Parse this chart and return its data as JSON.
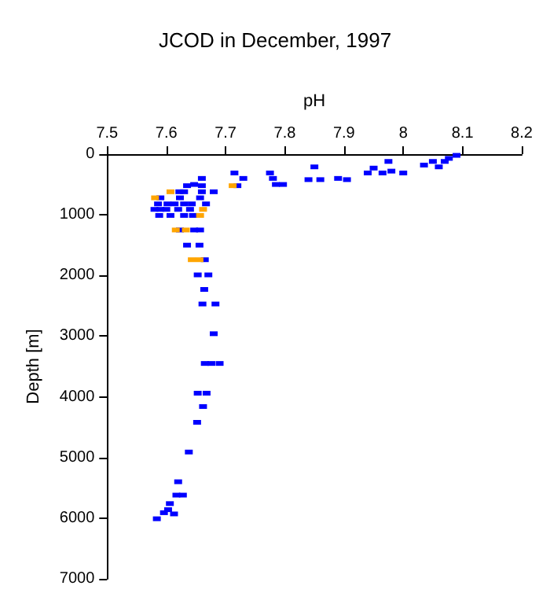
{
  "chart_data": {
    "type": "scatter",
    "title": "JCOD in December, 1997",
    "xlabel": "pH",
    "ylabel": "Depth [m]",
    "xlim": [
      7.5,
      8.2
    ],
    "xticks": [
      7.5,
      7.6,
      7.7,
      7.8,
      7.9,
      8,
      8.1,
      8.2
    ],
    "ylim": [
      7000,
      0
    ],
    "yticks": [
      0,
      1000,
      2000,
      3000,
      4000,
      5000,
      6000,
      7000
    ],
    "grid": false,
    "marker": "square",
    "series": [
      {
        "color": "#0000ff",
        "x": [
          8.09,
          8.077,
          8.05,
          8.07,
          7.975,
          8.035,
          8.06,
          7.85,
          7.95,
          7.98,
          7.94,
          7.965,
          8.0,
          7.715,
          7.775,
          7.73,
          7.78,
          7.84,
          7.86,
          7.89,
          7.905,
          7.66,
          7.785,
          7.797,
          7.72,
          7.635,
          7.647,
          7.66,
          7.622,
          7.63,
          7.66,
          7.68,
          7.59,
          7.623,
          7.657,
          7.586,
          7.602,
          7.614,
          7.63,
          7.643,
          7.667,
          7.58,
          7.59,
          7.6,
          7.62,
          7.64,
          7.588,
          7.607,
          7.63,
          7.645,
          7.623,
          7.647,
          7.657,
          7.635,
          7.656,
          7.665,
          7.653,
          7.671,
          7.664,
          7.661,
          7.683,
          7.68,
          7.665,
          7.676,
          7.69,
          7.653,
          7.668,
          7.662,
          7.652,
          7.638,
          7.62,
          7.617,
          7.628,
          7.606,
          7.603,
          7.596,
          7.613,
          7.584
        ],
        "values": [
          20,
          70,
          120,
          120,
          120,
          180,
          210,
          210,
          230,
          280,
          310,
          310,
          310,
          310,
          310,
          400,
          400,
          420,
          420,
          400,
          420,
          400,
          500,
          500,
          520,
          520,
          500,
          520,
          620,
          620,
          620,
          620,
          720,
          720,
          720,
          820,
          820,
          820,
          820,
          820,
          820,
          910,
          910,
          910,
          910,
          910,
          1010,
          1010,
          1010,
          1010,
          1250,
          1250,
          1250,
          1500,
          1500,
          1740,
          1990,
          1990,
          2230,
          2470,
          2470,
          2960,
          3450,
          3450,
          3450,
          3940,
          3940,
          4160,
          4420,
          4910,
          5400,
          5620,
          5620,
          5760,
          5860,
          5910,
          5930,
          6010
        ]
      },
      {
        "color": "#ffa500",
        "x": [
          7.712,
          7.607,
          7.581,
          7.662,
          7.657,
          7.616,
          7.633,
          7.643,
          7.656
        ],
        "values": [
          520,
          620,
          720,
          910,
          1010,
          1250,
          1250,
          1740,
          1740
        ]
      }
    ]
  }
}
